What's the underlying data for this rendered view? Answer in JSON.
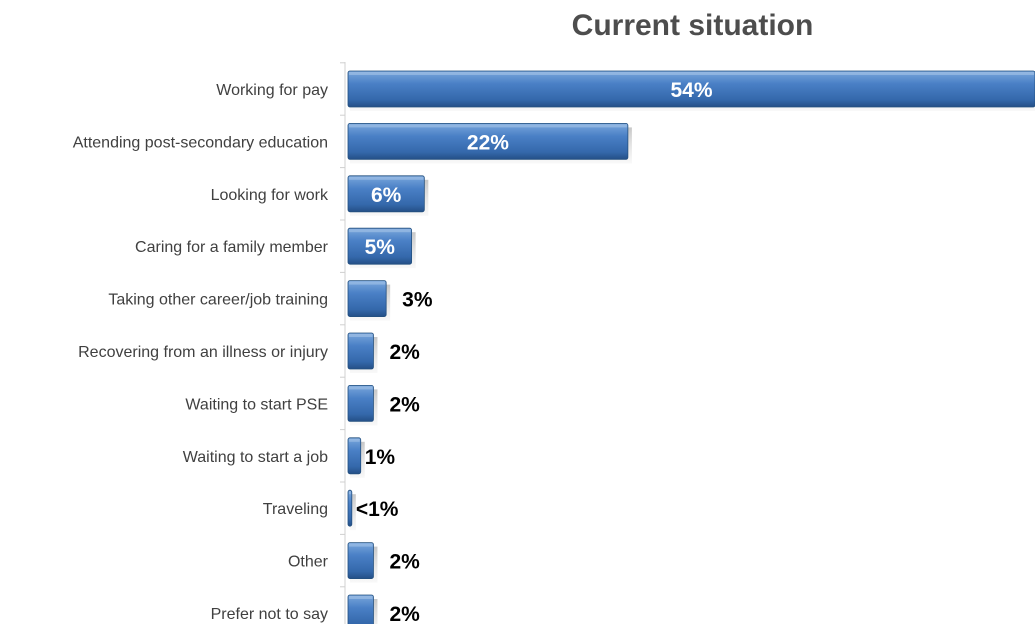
{
  "chart_data": {
    "type": "bar",
    "orientation": "horizontal",
    "title": "Current situation",
    "xlabel": "",
    "ylabel": "",
    "categories": [
      "Working for pay",
      "Attending post-secondary education",
      "Looking for work",
      "Caring for a family member",
      "Taking other career/job training",
      "Recovering from an illness or injury",
      "Waiting to start PSE",
      "Waiting to start a job",
      "Traveling",
      "Other",
      "Prefer not to say"
    ],
    "values": [
      54,
      22,
      6,
      5,
      3,
      2,
      2,
      1,
      0.3,
      2,
      2
    ],
    "value_labels": [
      "54%",
      "22%",
      "6%",
      "5%",
      "3%",
      "2%",
      "2%",
      "1%",
      "<1%",
      "2%",
      "2%"
    ],
    "xlim": [
      0,
      54
    ],
    "grid": false,
    "legend": "none",
    "colors": {
      "bar_top": "#6a9bd6",
      "bar_mid": "#4a7fc4",
      "bar_bottom": "#2b5a95",
      "bar_edge": "#24507f",
      "label_text": "#404040",
      "title_text": "#4d4d4d"
    }
  }
}
